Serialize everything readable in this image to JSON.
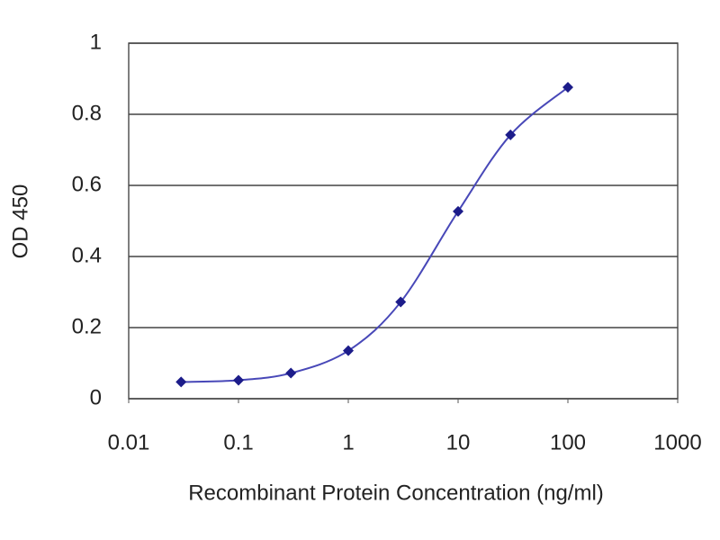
{
  "chart_data": {
    "type": "line",
    "x_label": "Recombinant Protein Concentration (ng/ml)",
    "y_label": "OD 450",
    "xscale": "log",
    "xlim": [
      0.01,
      1000
    ],
    "xticks": [
      0.01,
      0.1,
      1,
      10,
      100,
      1000
    ],
    "ylim": [
      0,
      1
    ],
    "yticks": [
      0,
      0.2,
      0.4,
      0.6,
      0.8,
      1
    ],
    "grid": true,
    "x": [
      0.03,
      0.1,
      0.3,
      1,
      3,
      10,
      30,
      100
    ],
    "series": [
      {
        "color": "#1c1c8a",
        "line_color": "#4848b8",
        "values": [
          0.047,
          0.052,
          0.072,
          0.135,
          0.272,
          0.527,
          0.742,
          0.876
        ]
      }
    ]
  }
}
